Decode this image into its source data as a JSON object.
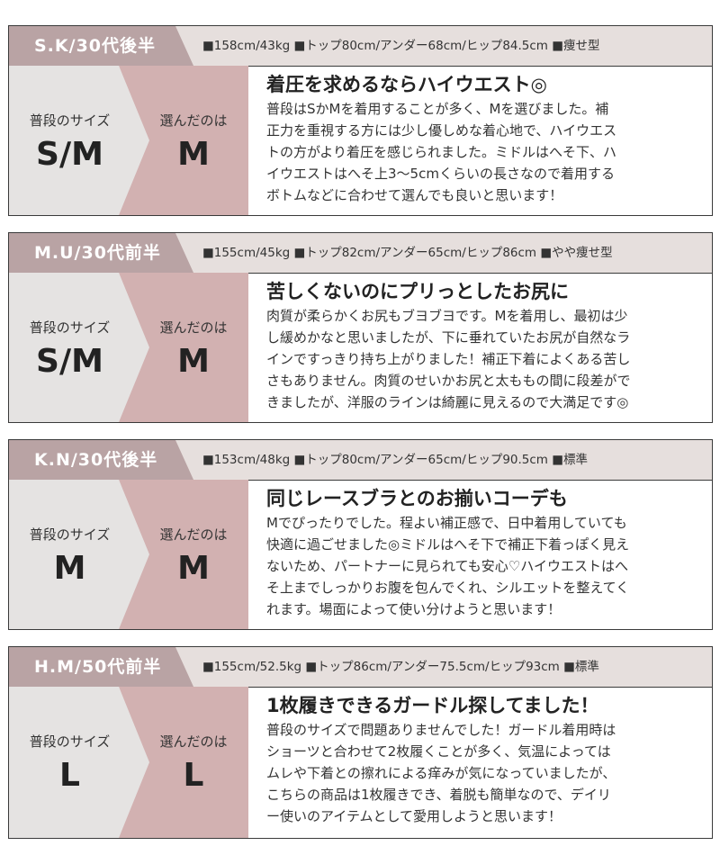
{
  "labels": {
    "usual": "普段のサイズ",
    "chosen": "選んだのは"
  },
  "colors": {
    "header_name_bg": "#b9a3a4",
    "header_bg": "#e6dfdd",
    "usual_bg": "#e5e3e2",
    "chosen_bg": "#d2b1b1"
  },
  "reviews": [
    {
      "name": "S.K/30代後半",
      "stats": "■158cm/43kg ■トップ80cm/アンダー68cm/ヒップ84.5cm ■痩せ型",
      "usual": "S/M",
      "chosen": "M",
      "title": "着圧を求めるならハイウエスト◎",
      "lines": [
        "普段はSかMを着用することが多く、Mを選びました。補",
        "正力を重視する方には少し優しめな着心地で、ハイウエス",
        "トの方がより着圧を感じられました。ミドルはへそ下、ハ",
        "イウエストはへそ上3〜5cmくらいの長さなので着用する",
        "ボトムなどに合わせて選んでも良いと思います！"
      ]
    },
    {
      "name": "M.U/30代前半",
      "stats": "■155cm/45kg ■トップ82cm/アンダー65cm/ヒップ86cm ■やや痩せ型",
      "usual": "S/M",
      "chosen": "M",
      "title": "苦しくないのにプリっとしたお尻に",
      "lines": [
        "肉質が柔らかくお尻もブヨブヨです。Mを着用し、最初は少",
        "し緩めかなと思いましたが、下に垂れていたお尻が自然なラ",
        "インですっきり持ち上がりました！補正下着によくある苦し",
        "さもありません。肉質のせいかお尻と太ももの間に段差がで",
        "きましたが、洋服のラインは綺麗に見えるので大満足です◎"
      ]
    },
    {
      "name": "K.N/30代後半",
      "stats": "■153cm/48kg ■トップ80cm/アンダー65cm/ヒップ90.5cm ■標準",
      "usual": "M",
      "chosen": "M",
      "title": "同じレースブラとのお揃いコーデも",
      "lines": [
        "Mでぴったりでした。程よい補正感で、日中着用していても",
        "快適に過ごせました◎ミドルはへそ下で補正下着っぽく見え",
        "ないため、パートナーに見られても安心♡ハイウエストはへ",
        "そ上までしっかりお腹を包んでくれ、シルエットを整えてく",
        "れます。場面によって使い分けようと思います！"
      ]
    },
    {
      "name": "H.M/50代前半",
      "stats": "■155cm/52.5kg ■トップ86cm/アンダー75.5cm/ヒップ93cm ■標準",
      "usual": "L",
      "chosen": "L",
      "title": "1枚履きできるガードル探してました！",
      "lines": [
        "普段のサイズで問題ありませんでした！ガードル着用時は",
        "ショーツと合わせて2枚履くことが多く、気温によっては",
        "ムレや下着との擦れによる痒みが気になっていましたが、",
        "こちらの商品は1枚履きでき、着脱も簡単なので、デイリ",
        "ー使いのアイテムとして愛用しようと思います！"
      ]
    }
  ]
}
